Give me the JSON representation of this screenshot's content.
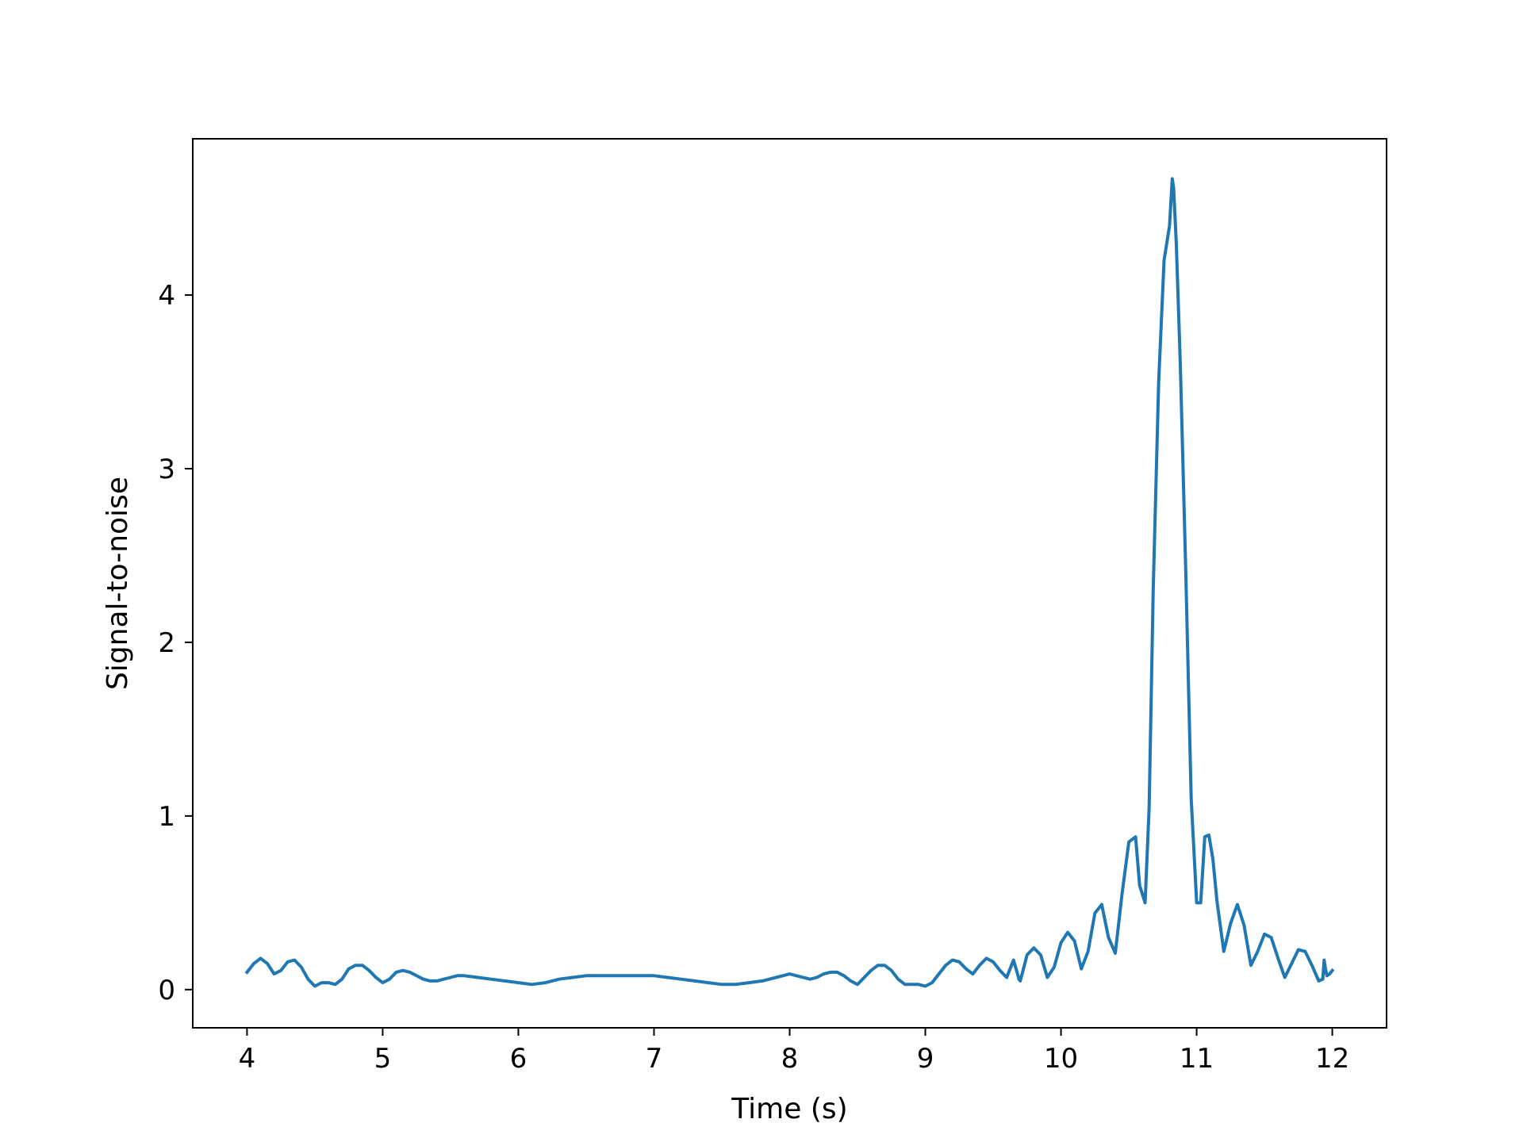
{
  "chart_data": {
    "type": "line",
    "title": "",
    "xlabel": "Time (s)",
    "ylabel": "Signal-to-noise",
    "xlim": [
      3.6,
      12.4
    ],
    "ylim": [
      -0.22,
      4.9
    ],
    "xticks": [
      4,
      5,
      6,
      7,
      8,
      9,
      10,
      11,
      12
    ],
    "xtick_labels": [
      "4",
      "5",
      "6",
      "7",
      "8",
      "9",
      "10",
      "11",
      "12"
    ],
    "yticks": [
      0,
      1,
      2,
      3,
      4
    ],
    "ytick_labels": [
      "0",
      "1",
      "2",
      "3",
      "4"
    ],
    "grid": false,
    "legend": "none",
    "line_color": "#1f77b4",
    "series": [
      {
        "x": [
          4.0,
          4.05,
          4.1,
          4.15,
          4.2,
          4.25,
          4.3,
          4.35,
          4.4,
          4.45,
          4.5,
          4.55,
          4.6,
          4.65,
          4.7,
          4.75,
          4.8,
          4.85,
          4.9,
          4.95,
          5.0,
          5.05,
          5.1,
          5.15,
          5.2,
          5.25,
          5.3,
          5.35,
          5.4,
          5.45,
          5.5,
          5.55,
          5.6,
          5.7,
          5.8,
          5.9,
          6.0,
          6.1,
          6.2,
          6.3,
          6.4,
          6.5,
          6.6,
          6.7,
          6.8,
          6.9,
          7.0,
          7.1,
          7.2,
          7.3,
          7.4,
          7.5,
          7.6,
          7.7,
          7.8,
          7.85,
          7.9,
          7.95,
          8.0,
          8.05,
          8.1,
          8.15,
          8.2,
          8.25,
          8.3,
          8.35,
          8.4,
          8.45,
          8.5,
          8.55,
          8.6,
          8.65,
          8.7,
          8.75,
          8.8,
          8.85,
          8.9,
          8.95,
          9.0,
          9.05,
          9.1,
          9.15,
          9.2,
          9.25,
          9.3,
          9.35,
          9.4,
          9.45,
          9.5,
          9.55,
          9.6,
          9.65,
          9.68,
          9.69,
          9.7,
          9.72,
          9.75,
          9.8,
          9.85,
          9.9,
          9.95,
          10.0,
          10.05,
          10.1,
          10.15,
          10.2,
          10.25,
          10.3,
          10.35,
          10.4,
          10.45,
          10.5,
          10.55,
          10.58,
          10.62,
          10.65,
          10.68,
          10.72,
          10.76,
          10.8,
          10.82,
          10.83,
          10.85,
          10.88,
          10.92,
          10.96,
          11.0,
          11.03,
          11.06,
          11.09,
          11.12,
          11.15,
          11.2,
          11.25,
          11.3,
          11.35,
          11.4,
          11.45,
          11.5,
          11.55,
          11.6,
          11.65,
          11.7,
          11.75,
          11.8,
          11.85,
          11.9,
          11.93,
          11.94,
          11.95,
          11.96,
          11.98,
          12.0
        ],
        "y": [
          0.1,
          0.15,
          0.18,
          0.15,
          0.09,
          0.11,
          0.16,
          0.17,
          0.13,
          0.06,
          0.02,
          0.04,
          0.04,
          0.03,
          0.06,
          0.12,
          0.14,
          0.14,
          0.11,
          0.07,
          0.04,
          0.06,
          0.1,
          0.11,
          0.1,
          0.08,
          0.06,
          0.05,
          0.05,
          0.06,
          0.07,
          0.08,
          0.08,
          0.07,
          0.06,
          0.05,
          0.04,
          0.03,
          0.04,
          0.06,
          0.07,
          0.08,
          0.08,
          0.08,
          0.08,
          0.08,
          0.08,
          0.07,
          0.06,
          0.05,
          0.04,
          0.03,
          0.03,
          0.04,
          0.05,
          0.06,
          0.07,
          0.08,
          0.09,
          0.08,
          0.07,
          0.06,
          0.07,
          0.09,
          0.1,
          0.1,
          0.08,
          0.05,
          0.03,
          0.07,
          0.11,
          0.14,
          0.14,
          0.11,
          0.06,
          0.03,
          0.03,
          0.03,
          0.02,
          0.04,
          0.09,
          0.14,
          0.17,
          0.16,
          0.12,
          0.09,
          0.14,
          0.18,
          0.16,
          0.11,
          0.07,
          0.17,
          0.09,
          0.06,
          0.05,
          0.11,
          0.2,
          0.24,
          0.2,
          0.07,
          0.13,
          0.27,
          0.33,
          0.28,
          0.12,
          0.22,
          0.44,
          0.49,
          0.3,
          0.21,
          0.55,
          0.85,
          0.88,
          0.6,
          0.5,
          1.05,
          2.3,
          3.5,
          4.2,
          4.4,
          4.67,
          4.62,
          4.3,
          3.6,
          2.4,
          1.1,
          0.5,
          0.5,
          0.88,
          0.89,
          0.75,
          0.51,
          0.22,
          0.38,
          0.49,
          0.37,
          0.14,
          0.22,
          0.32,
          0.3,
          0.18,
          0.07,
          0.15,
          0.23,
          0.22,
          0.14,
          0.05,
          0.06,
          0.17,
          0.12,
          0.08,
          0.09,
          0.11
        ]
      }
    ]
  }
}
